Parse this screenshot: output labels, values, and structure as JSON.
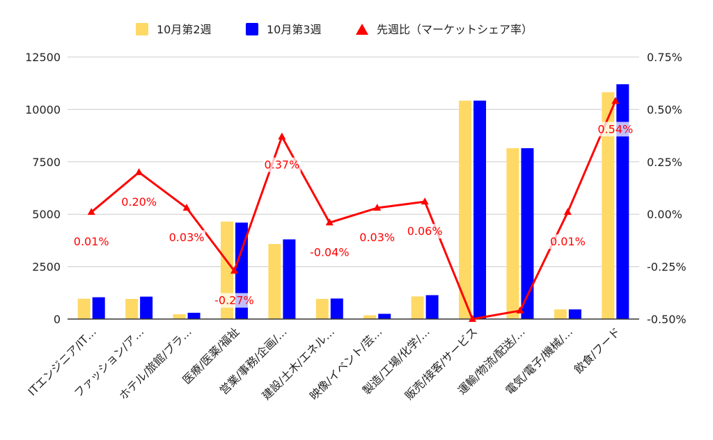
{
  "chart_data": {
    "type": "bar",
    "categories": [
      "ITエンジニア/IT…",
      "ファッション/ア…",
      "ホテル/旅館/ブラ…",
      "医療/医薬/福祉",
      "営業/事務/企画/…",
      "建設/土木/エネル…",
      "映像/イベント/芸…",
      "製造/工場/化学/…",
      "販売/接客/サービス",
      "運輸/物流/配送/…",
      "電気/電子/機械/…",
      "飲食/フード"
    ],
    "series": [
      {
        "name": "10月第2週",
        "type": "bar",
        "axis": "left",
        "color": "#ffd966",
        "values": [
          970,
          960,
          230,
          4650,
          3580,
          960,
          180,
          1080,
          10420,
          8150,
          460,
          10820
        ]
      },
      {
        "name": "10月第3週",
        "type": "bar",
        "axis": "left",
        "color": "#0000ff",
        "values": [
          1040,
          1070,
          300,
          4600,
          3800,
          980,
          250,
          1140,
          10420,
          8150,
          460,
          11200
        ]
      },
      {
        "name": "先週比（マーケットシェア率）",
        "type": "line",
        "axis": "right",
        "color": "#ff0000",
        "values": [
          0.01,
          0.2,
          0.03,
          -0.27,
          0.37,
          -0.04,
          0.03,
          0.06,
          -0.5,
          -0.46,
          0.01,
          0.54
        ],
        "labels": [
          "0.01%",
          "0.20%",
          "0.03%",
          "-0.27%",
          "0.37%",
          "-0.04%",
          "0.03%",
          "0.06%",
          "",
          "",
          "0.01%",
          "0.54%"
        ]
      }
    ],
    "y_left": {
      "range": [
        0,
        12500
      ],
      "ticks": [
        "0",
        "2500",
        "5000",
        "7500",
        "10000",
        "12500"
      ],
      "tick_values": [
        0,
        2500,
        5000,
        7500,
        10000,
        12500
      ]
    },
    "y_right": {
      "range": [
        -0.5,
        0.75
      ],
      "ticks": [
        "-0.50%",
        "-0.25%",
        "0.00%",
        "0.25%",
        "0.50%",
        "0.75%"
      ],
      "tick_values": [
        -0.5,
        -0.25,
        0,
        0.25,
        0.5,
        0.75
      ]
    },
    "grid": true,
    "legend_position": "top-center",
    "title": "",
    "xlabel": "",
    "ylabel": ""
  }
}
